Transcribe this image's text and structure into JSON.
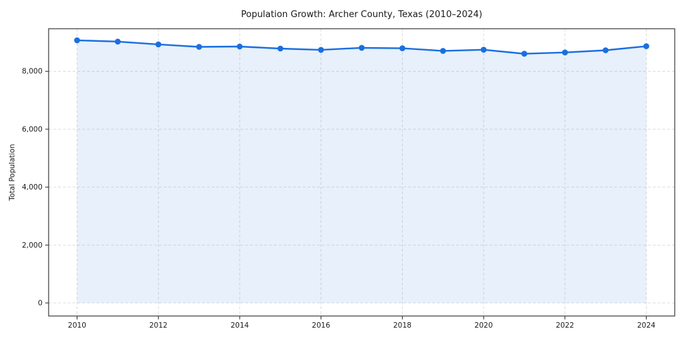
{
  "chart_data": {
    "type": "line",
    "title": "Population Growth: Archer County, Texas (2010–2024)",
    "xlabel": "",
    "ylabel": "Total Population",
    "x": [
      2010,
      2011,
      2012,
      2013,
      2014,
      2015,
      2016,
      2017,
      2018,
      2019,
      2020,
      2021,
      2022,
      2023,
      2024
    ],
    "series": [
      {
        "name": "Total Population",
        "values": [
          9070,
          9025,
          8930,
          8845,
          8855,
          8785,
          8740,
          8810,
          8795,
          8705,
          8745,
          8605,
          8650,
          8725,
          8865
        ]
      }
    ],
    "x_ticks": [
      2010,
      2012,
      2014,
      2016,
      2018,
      2020,
      2022,
      2024
    ],
    "x_tick_labels": [
      "2010",
      "2012",
      "2014",
      "2016",
      "2018",
      "2020",
      "2022",
      "2024"
    ],
    "y_ticks": [
      0,
      2000,
      4000,
      6000,
      8000
    ],
    "y_tick_labels": [
      "0",
      "2,000",
      "4,000",
      "6,000",
      "8,000"
    ],
    "xlim": [
      2009.3,
      2024.7
    ],
    "ylim": [
      -450,
      9470
    ],
    "grid": true,
    "grid_style": "dashed",
    "legend": "none",
    "area_baseline": 0,
    "colors": {
      "line": "#1a6fe0",
      "marker": "#1a6fe0",
      "fill": "rgba(26,111,224,0.10)",
      "gridline": "#d9d9d9",
      "spine": "#262626",
      "text": "#1a1a1a",
      "background": "#ffffff"
    }
  }
}
